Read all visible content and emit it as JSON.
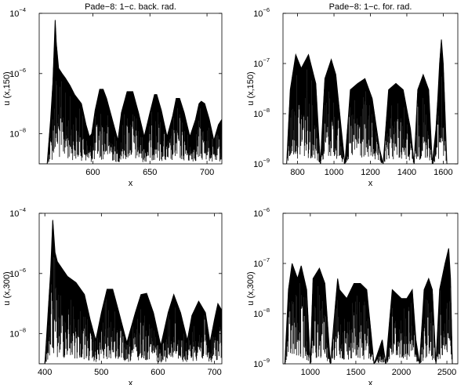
{
  "chart_data": [
    {
      "type": "line",
      "title": "Pade−8: 1−c. back. rad.",
      "xlabel": "x",
      "ylabel": "u (x,150)",
      "xlim": [
        553,
        713
      ],
      "ylim_log10": [
        -9,
        -4
      ],
      "y_scale": "log",
      "x_ticks": [
        600,
        650,
        700
      ],
      "y_ticks": [
        {
          "base": "10",
          "exp": "−4"
        },
        {
          "base": "10",
          "exp": "−6"
        },
        {
          "base": "10",
          "exp": "−8"
        }
      ],
      "series": [
        {
          "x": [
            553,
            560,
            563,
            565,
            567,
            568,
            570,
            573,
            576,
            580,
            584,
            590,
            594,
            597,
            599,
            602,
            606,
            609,
            612,
            617,
            622,
            625,
            630,
            635,
            640,
            645,
            650,
            654,
            656,
            660,
            665,
            670,
            673,
            676,
            680,
            685,
            690,
            693,
            695,
            698,
            702,
            706,
            710,
            713
          ],
          "y": [
            1e-09,
            1e-09,
            3e-08,
            5e-07,
            6e-05,
            1e-05,
            1.5e-06,
            1e-06,
            7e-07,
            4e-07,
            2e-07,
            1e-07,
            2e-08,
            8e-09,
            1e-08,
            6e-08,
            3e-07,
            3e-07,
            1.5e-07,
            3e-08,
            6e-09,
            5e-08,
            2.5e-07,
            2.5e-07,
            5e-08,
            8e-09,
            5e-08,
            2e-07,
            2e-07,
            6e-08,
            8e-09,
            4e-08,
            1.5e-07,
            1.5e-07,
            5e-08,
            8e-09,
            3e-08,
            1e-07,
            1.2e-07,
            1e-07,
            3e-08,
            6e-09,
            2e-08,
            3e-08
          ]
        }
      ]
    },
    {
      "type": "line",
      "title": "Pade−8: 1−c. for. rad.",
      "xlabel": "x",
      "ylabel": "u (x,150)",
      "xlim": [
        720,
        1680
      ],
      "ylim_log10": [
        -9,
        -6
      ],
      "y_scale": "log",
      "x_ticks": [
        800,
        1000,
        1200,
        1400,
        1600
      ],
      "y_ticks": [
        {
          "base": "10",
          "exp": "−6"
        },
        {
          "base": "10",
          "exp": "−7"
        },
        {
          "base": "10",
          "exp": "−8"
        },
        {
          "base": "10",
          "exp": "−9"
        }
      ],
      "series": [
        {
          "x": [
            740,
            760,
            790,
            820,
            860,
            900,
            925,
            950,
            985,
            1010,
            1040,
            1060,
            1090,
            1130,
            1170,
            1210,
            1250,
            1270,
            1300,
            1340,
            1380,
            1420,
            1440,
            1460,
            1490,
            1520,
            1540,
            1560,
            1570,
            1580,
            1590,
            1600,
            1610,
            1620,
            1640,
            1680
          ],
          "y": [
            1e-09,
            3e-08,
            1.5e-07,
            8e-08,
            1.5e-07,
            4e-08,
            1e-09,
            5e-08,
            1.2e-07,
            6e-08,
            5e-09,
            1e-09,
            3e-08,
            4e-08,
            5e-08,
            2e-08,
            2e-09,
            1e-09,
            3e-08,
            4e-08,
            3e-08,
            5e-09,
            1e-09,
            3e-08,
            6e-08,
            3e-08,
            1e-09,
            5e-09,
            2e-08,
            1e-07,
            3e-07,
            1e-07,
            1e-08,
            1e-09,
            1e-09,
            1e-09
          ]
        }
      ]
    },
    {
      "type": "line",
      "title": "",
      "xlabel": "x",
      "ylabel": "u (x,300)",
      "xlim": [
        390,
        713
      ],
      "ylim_log10": [
        -9,
        -4
      ],
      "y_scale": "log",
      "x_ticks": [
        400,
        500,
        600,
        700
      ],
      "y_ticks": [
        {
          "base": "10",
          "exp": "−4"
        },
        {
          "base": "10",
          "exp": "−6"
        },
        {
          "base": "10",
          "exp": "−8"
        }
      ],
      "series": [
        {
          "x": [
            390,
            400,
            405,
            410,
            414,
            418,
            422,
            430,
            440,
            455,
            470,
            480,
            490,
            500,
            510,
            520,
            530,
            545,
            560,
            570,
            580,
            592,
            605,
            618,
            628,
            640,
            652,
            660,
            672,
            684,
            692,
            700,
            706,
            713
          ],
          "y": [
            1e-09,
            1e-09,
            3e-08,
            1e-06,
            6e-05,
            5e-06,
            2.5e-06,
            1.5e-06,
            8e-07,
            5e-07,
            2e-07,
            3e-08,
            6e-09,
            5e-08,
            3e-07,
            3e-07,
            6e-08,
            5e-09,
            5e-08,
            2e-07,
            2.2e-07,
            5e-08,
            4e-09,
            5e-08,
            2e-07,
            5e-08,
            6e-09,
            4e-08,
            1.2e-07,
            5e-08,
            5e-09,
            3e-08,
            1e-07,
            6e-08
          ]
        }
      ]
    },
    {
      "type": "line",
      "title": "",
      "xlabel": "x",
      "ylabel": "u (x,300)",
      "xlim": [
        700,
        2620
      ],
      "ylim_log10": [
        -9,
        -6
      ],
      "y_scale": "log",
      "x_ticks": [
        1000,
        1500,
        2000,
        2500
      ],
      "y_ticks": [
        {
          "base": "10",
          "exp": "−6"
        },
        {
          "base": "10",
          "exp": "−7"
        },
        {
          "base": "10",
          "exp": "−8"
        },
        {
          "base": "10",
          "exp": "−9"
        }
      ],
      "series": [
        {
          "x": [
            720,
            760,
            800,
            860,
            900,
            960,
            1000,
            1030,
            1100,
            1160,
            1220,
            1300,
            1320,
            1400,
            1480,
            1550,
            1620,
            1700,
            1790,
            1830,
            1900,
            2000,
            2060,
            2120,
            2160,
            2200,
            2250,
            2300,
            2340,
            2380,
            2420,
            2480,
            2520,
            2540,
            2560,
            2580,
            2620
          ],
          "y": [
            1e-09,
            3e-08,
            1e-07,
            5e-08,
            9e-08,
            3e-08,
            1e-09,
            5e-08,
            8e-08,
            4e-08,
            1e-09,
            5e-08,
            3e-08,
            2e-08,
            4e-08,
            4e-08,
            3e-08,
            1e-09,
            3e-09,
            1e-09,
            3e-08,
            2e-08,
            2e-08,
            3e-08,
            3e-09,
            1e-09,
            3e-08,
            5e-08,
            3e-08,
            1e-09,
            3e-08,
            1e-07,
            2e-07,
            5e-08,
            1e-09,
            1e-09,
            1e-09
          ]
        }
      ]
    }
  ]
}
